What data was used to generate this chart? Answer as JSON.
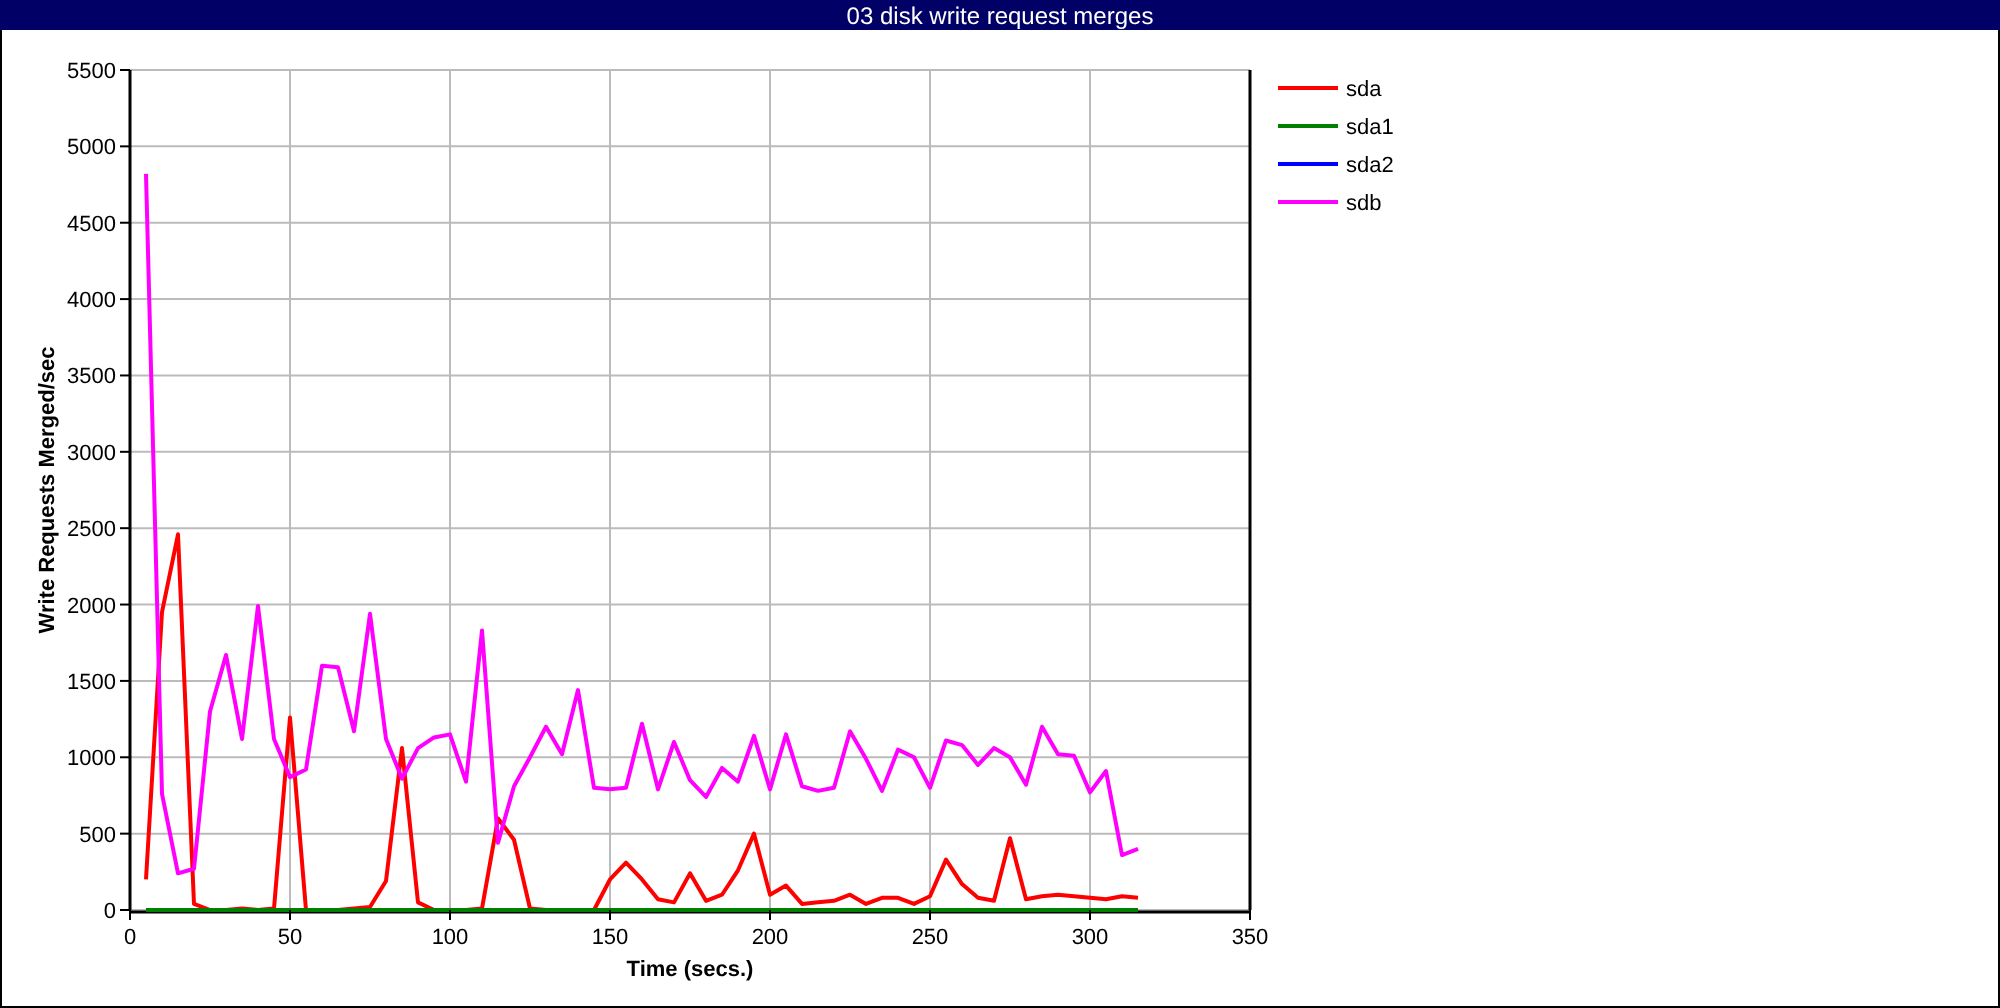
{
  "chart_data": {
    "type": "line",
    "title": "03 disk write request merges",
    "xlabel": "Time (secs.)",
    "ylabel": "Write Requests Merged/sec",
    "x": [
      5,
      10,
      15,
      20,
      25,
      30,
      35,
      40,
      45,
      50,
      55,
      60,
      65,
      70,
      75,
      80,
      85,
      90,
      95,
      100,
      105,
      110,
      115,
      120,
      125,
      130,
      135,
      140,
      145,
      150,
      155,
      160,
      165,
      170,
      175,
      180,
      185,
      190,
      195,
      200,
      205,
      210,
      215,
      220,
      225,
      230,
      235,
      240,
      245,
      250,
      255,
      260,
      265,
      270,
      275,
      280,
      285,
      290,
      295,
      300,
      305,
      310,
      315
    ],
    "series": [
      {
        "name": "sda",
        "color": "#ff0000",
        "values": [
          200,
          1950,
          2460,
          40,
          0,
          0,
          10,
          0,
          10,
          1260,
          0,
          0,
          0,
          10,
          20,
          190,
          1060,
          50,
          0,
          0,
          0,
          10,
          600,
          460,
          10,
          0,
          0,
          0,
          0,
          200,
          310,
          200,
          70,
          50,
          240,
          60,
          100,
          260,
          500,
          100,
          160,
          40,
          50,
          60,
          100,
          40,
          80,
          80,
          40,
          90,
          330,
          170,
          80,
          60,
          470,
          70,
          90,
          100,
          90,
          80,
          70,
          90,
          80
        ]
      },
      {
        "name": "sda1",
        "color": "#008000",
        "values": [
          0,
          0,
          0,
          0,
          0,
          0,
          0,
          0,
          0,
          0,
          0,
          0,
          0,
          0,
          0,
          0,
          0,
          0,
          0,
          0,
          0,
          0,
          0,
          0,
          0,
          0,
          0,
          0,
          0,
          0,
          0,
          0,
          0,
          0,
          0,
          0,
          0,
          0,
          0,
          0,
          0,
          0,
          0,
          0,
          0,
          0,
          0,
          0,
          0,
          0,
          0,
          0,
          0,
          0,
          0,
          0,
          0,
          0,
          0,
          0,
          0,
          0,
          0
        ]
      },
      {
        "name": "sda2",
        "color": "#0000ff",
        "values": [
          null,
          null,
          null,
          null,
          null,
          null,
          null,
          null,
          null,
          null,
          null,
          null,
          null,
          null,
          null,
          null,
          null,
          null,
          null,
          null,
          null,
          null,
          null,
          null,
          null,
          null,
          null,
          null,
          null,
          null,
          null,
          null,
          null,
          null,
          null,
          null,
          null,
          null,
          null,
          null,
          null,
          null,
          null,
          null,
          null,
          null,
          null,
          null,
          null,
          null,
          null,
          null,
          null,
          null,
          null,
          null,
          null,
          null,
          null,
          null,
          null,
          null,
          null
        ]
      },
      {
        "name": "sdb",
        "color": "#ff00ff",
        "values": [
          4820,
          760,
          240,
          270,
          1300,
          1670,
          1120,
          1990,
          1120,
          870,
          920,
          1600,
          1590,
          1170,
          1940,
          1120,
          860,
          1060,
          1130,
          1150,
          840,
          1830,
          440,
          810,
          1000,
          1200,
          1020,
          1440,
          800,
          790,
          800,
          1220,
          790,
          1100,
          850,
          740,
          930,
          840,
          1140,
          790,
          1150,
          810,
          780,
          800,
          1170,
          990,
          780,
          1050,
          1000,
          800,
          1110,
          1080,
          950,
          1060,
          1000,
          820,
          1200,
          1020,
          1010,
          770,
          910,
          360,
          400
        ]
      }
    ],
    "xlim": [
      0,
      350
    ],
    "xticks": [
      0,
      50,
      100,
      150,
      200,
      250,
      300,
      350
    ],
    "ylim": [
      0,
      5500
    ],
    "yticks": [
      0,
      500,
      1000,
      1500,
      2000,
      2500,
      3000,
      3500,
      4000,
      4500,
      5000,
      5500
    ],
    "grid": true,
    "legend": "top right"
  }
}
